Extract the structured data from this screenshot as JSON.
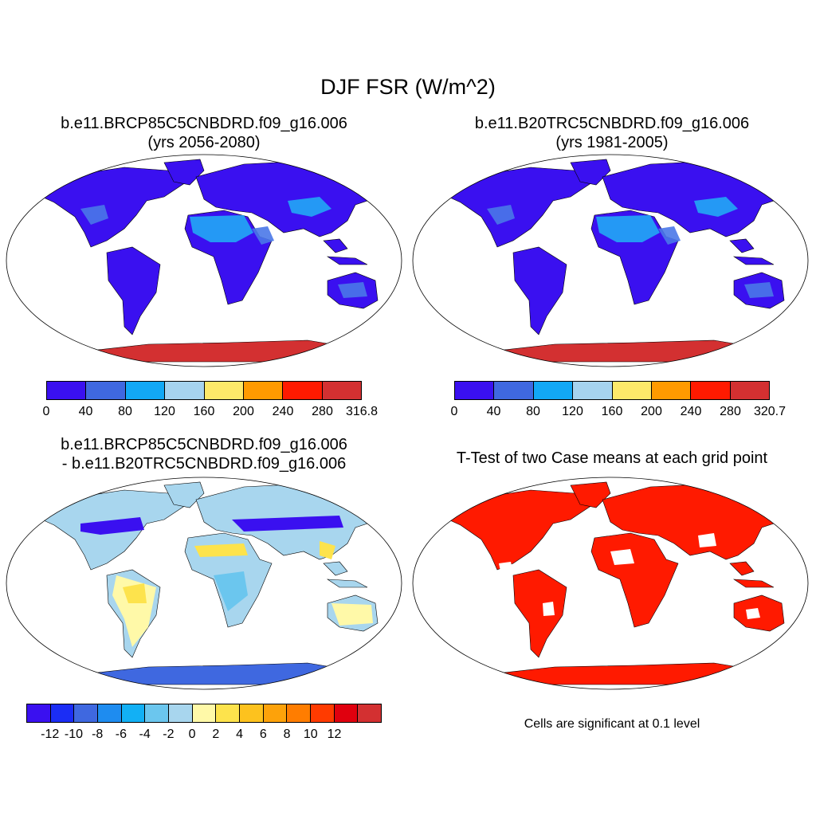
{
  "title": "DJF FSR (W/m^2)",
  "panels": {
    "p1": {
      "line1": "b.e11.BRCP85C5CNBDRD.f09_g16.006",
      "line2": "(yrs 2056-2080)"
    },
    "p2": {
      "line1": "b.e11.B20TRC5CNBDRD.f09_g16.006",
      "line2": "(yrs 1981-2005)"
    },
    "p3": {
      "line1": "b.e11.BRCP85C5CNBDRD.f09_g16.006",
      "line2": "- b.e11.B20TRC5CNBDRD.f09_g16.006"
    },
    "p4": {
      "line1": "T-Test of two Case means at each grid point"
    }
  },
  "colorbars": {
    "cb1": {
      "colors": [
        "#3a10f0",
        "#3f68e0",
        "#12a8f5",
        "#a6d3ef",
        "#fde96a",
        "#ff9a00",
        "#ff1a00",
        "#d33031"
      ],
      "labels": [
        "0",
        "40",
        "80",
        "120",
        "160",
        "200",
        "240",
        "280",
        "316.8"
      ]
    },
    "cb2": {
      "colors": [
        "#3a10f0",
        "#3f68e0",
        "#12a8f5",
        "#a6d3ef",
        "#fde96a",
        "#ff9a00",
        "#ff1a00",
        "#d33031"
      ],
      "labels": [
        "0",
        "40",
        "80",
        "120",
        "160",
        "200",
        "240",
        "280",
        "320.7"
      ]
    },
    "cb3": {
      "colors": [
        "#3a10f0",
        "#1b2df5",
        "#3f68e0",
        "#1e8cf0",
        "#12b0f5",
        "#6bc6ee",
        "#a8d6ee",
        "#fff9a8",
        "#fde34c",
        "#fdc21e",
        "#fda20a",
        "#ff7d00",
        "#ff3b00",
        "#e0000e",
        "#d33031"
      ],
      "labels": [
        "-12",
        "-10",
        "-8",
        "-6",
        "-4",
        "-2",
        "0",
        "2",
        "4",
        "6",
        "8",
        "10",
        "12"
      ]
    }
  },
  "note": "Cells are significant at 0.1 level",
  "map_colors": {
    "p1": {
      "ocean": "#ffffff",
      "land": "#3a10f0",
      "desert": "#4a78e8",
      "desert_light": "#22a8f5",
      "antarctica": "#d33031"
    },
    "p2": {
      "ocean": "#ffffff",
      "land": "#3a10f0",
      "desert": "#4a78e8",
      "desert_light": "#22a8f5",
      "antarctica": "#d33031"
    },
    "p3": {
      "ocean": "#ffffff",
      "land": "#a8d6ee",
      "warm": "#fde34c",
      "warm_light": "#fff9a8",
      "cool": "#6bc6ee",
      "strong_cool": "#3a10f0",
      "antarctica": "#3f68e0"
    },
    "p4": {
      "ocean": "#ffffff",
      "land": "#ff1a00",
      "gap": "#ffffff",
      "antarctica": "#ff1a00"
    }
  }
}
